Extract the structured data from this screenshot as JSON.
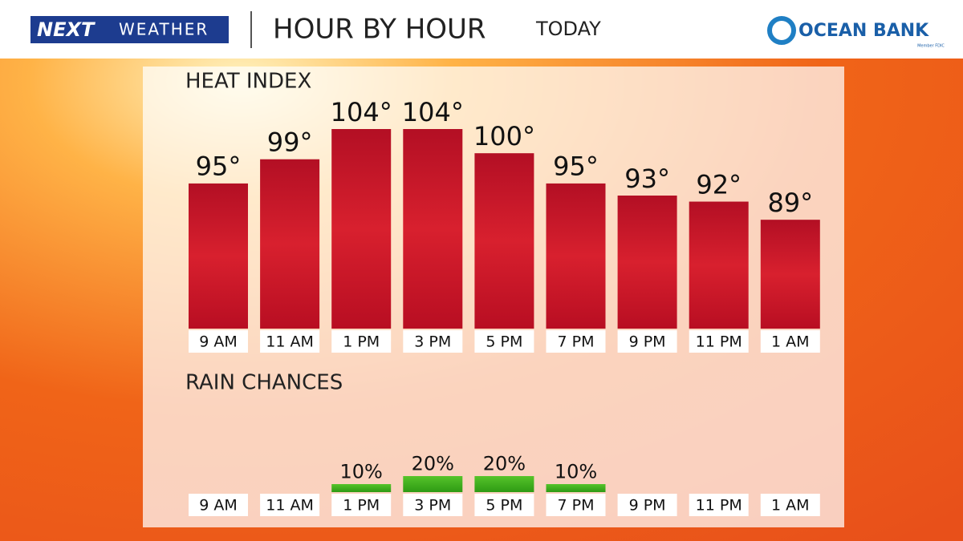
{
  "header": {
    "brand_a": "NEXT",
    "brand_b": "WEATHER",
    "title": "HOUR BY HOUR",
    "subtitle": "TODAY",
    "sponsor": "OCEAN BANK",
    "sponsor_note": "Member FDIC"
  },
  "chart_data": [
    {
      "type": "bar",
      "title": "HEAT INDEX",
      "categories": [
        "9 AM",
        "11 AM",
        "1 PM",
        "3 PM",
        "5 PM",
        "7 PM",
        "9 PM",
        "11 PM",
        "1 AM"
      ],
      "values": [
        95,
        99,
        104,
        104,
        100,
        95,
        93,
        92,
        89
      ],
      "value_labels": [
        "95°",
        "99°",
        "104°",
        "104°",
        "100°",
        "95°",
        "93°",
        "92°",
        "89°"
      ],
      "color": "#c8102e",
      "ylim": [
        71,
        104
      ]
    },
    {
      "type": "bar",
      "title": "RAIN CHANCES",
      "categories": [
        "9 AM",
        "11 AM",
        "1 PM",
        "3 PM",
        "5 PM",
        "7 PM",
        "9 PM",
        "11 PM",
        "1 AM"
      ],
      "values": [
        null,
        null,
        10,
        20,
        20,
        10,
        null,
        null,
        null
      ],
      "value_labels": [
        null,
        null,
        "10%",
        "20%",
        "20%",
        "10%",
        null,
        null,
        null
      ],
      "color": "#3cae1e",
      "ylim": [
        0,
        100
      ]
    }
  ]
}
